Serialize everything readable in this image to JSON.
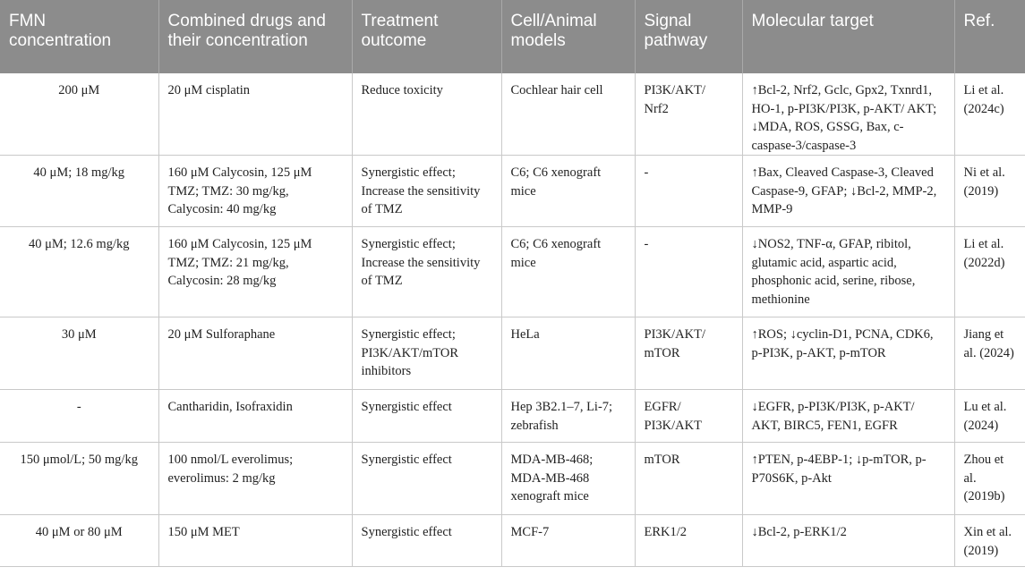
{
  "table": {
    "headers": [
      "FMN concentration",
      "Combined drugs and their concentration",
      "Treatment outcome",
      "Cell/Animal models",
      "Signal pathway",
      "Molecular target",
      "Ref."
    ],
    "rows": [
      [
        "200 μM",
        "20 μM cisplatin",
        "Reduce toxicity",
        "Cochlear hair cell",
        "PI3K/AKT/ Nrf2",
        "↑Bcl-2, Nrf2, Gclc, Gpx2, Txnrd1, HO-1, p-PI3K/PI3K, p-AKT/ AKT; ↓MDA, ROS, GSSG, Bax, c-caspase-3/caspase-3",
        "Li et al. (2024c)"
      ],
      [
        "40 μM; 18 mg/kg",
        "160 μM Calycosin, 125 μM TMZ; TMZ: 30 mg/kg, Calycosin: 40 mg/kg",
        "Synergistic effect; Increase the sensitivity of TMZ",
        "C6; C6 xenograft mice",
        "-",
        "↑Bax, Cleaved Caspase-3, Cleaved Caspase-9, GFAP; ↓Bcl-2, MMP-2, MMP-9",
        "Ni et al. (2019)"
      ],
      [
        "40 μM; 12.6 mg/kg",
        "160 μM Calycosin, 125 μM TMZ; TMZ: 21 mg/kg, Calycosin: 28 mg/kg",
        "Synergistic effect; Increase the sensitivity of TMZ",
        "C6; C6 xenograft mice",
        "-",
        "↓NOS2, TNF-α, GFAP, ribitol, glutamic acid, aspartic acid, phosphonic acid, serine, ribose, methionine",
        "Li et al. (2022d)"
      ],
      [
        "30 μM",
        "20 μM Sulforaphane",
        "Synergistic effect; PI3K/AKT/mTOR inhibitors",
        "HeLa",
        "PI3K/AKT/ mTOR",
        "↑ROS; ↓cyclin-D1, PCNA, CDK6, p-PI3K, p-AKT, p-mTOR",
        "Jiang et al. (2024)"
      ],
      [
        "-",
        "Cantharidin, Isofraxidin",
        "Synergistic effect",
        "Hep 3B2.1–7, Li-7; zebrafish",
        "EGFR/ PI3K/AKT",
        "↓EGFR, p-PI3K/PI3K, p-AKT/ AKT, BIRC5, FEN1, EGFR",
        "Lu et al. (2024)"
      ],
      [
        "150 μmol/L; 50 mg/kg",
        "100 nmol/L everolimus; everolimus: 2 mg/kg",
        "Synergistic effect",
        "MDA-MB-468; MDA-MB-468 xenograft mice",
        "mTOR",
        "↑PTEN, p-4EBP-1; ↓p-mTOR, p-P70S6K, p-Akt",
        "Zhou et al. (2019b)"
      ],
      [
        "40 μM or 80 μM",
        "150 μM MET",
        "Synergistic effect",
        "MCF-7",
        "ERK1/2",
        "↓Bcl-2, p-ERK1/2",
        "Xin et al. (2019)"
      ]
    ]
  }
}
